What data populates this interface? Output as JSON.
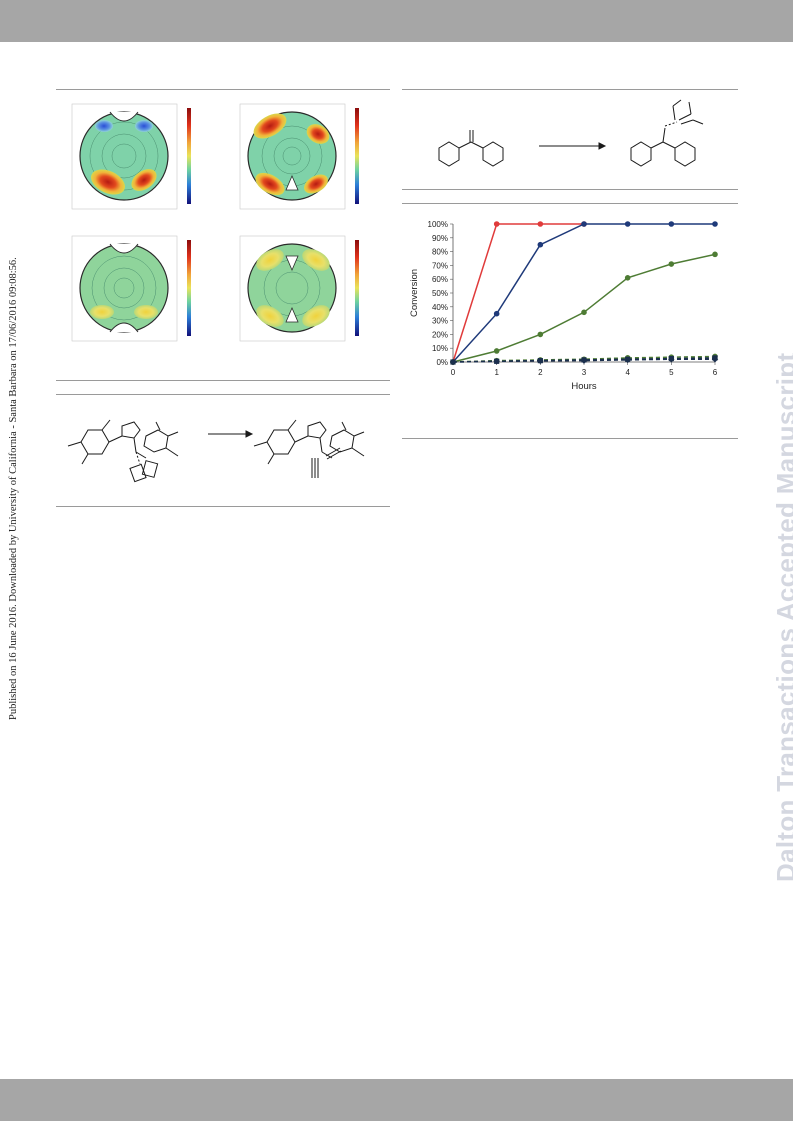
{
  "watermark_left": "Published on 16 June 2016. Downloaded by University of California - Santa Barbara on 17/06/2016 09:08:56.",
  "watermark_right": "Dalton Transactions Accepted Manuscript",
  "colors": {
    "band": "#a6a6a6",
    "red": "#e03b3b",
    "navy": "#1f3a7a",
    "green": "#4e7c34",
    "dark": "#1b2f4d"
  },
  "chart_data": {
    "type": "line",
    "xlabel": "Hours",
    "ylabel": "Conversion",
    "x": [
      0,
      1,
      2,
      3,
      4,
      5,
      6
    ],
    "ylim": [
      0,
      100
    ],
    "y_ticks": [
      "0%",
      "10%",
      "20%",
      "30%",
      "40%",
      "50%",
      "60%",
      "70%",
      "80%",
      "90%",
      "100%"
    ],
    "grid": false,
    "series": [
      {
        "color": "#e03b3b",
        "style": "solid",
        "marker": "circle",
        "values": [
          0,
          100,
          100,
          100,
          null,
          null,
          null
        ]
      },
      {
        "color": "#1f3a7a",
        "style": "solid",
        "marker": "circle",
        "values": [
          0,
          35,
          85,
          100,
          100,
          100,
          100
        ]
      },
      {
        "color": "#4e7c34",
        "style": "solid",
        "marker": "circle",
        "values": [
          0,
          8,
          20,
          36,
          61,
          71,
          78
        ]
      },
      {
        "color": "#4e7c34",
        "style": "dashed",
        "marker": "circle",
        "values": [
          0,
          1,
          1.5,
          2,
          3,
          3.5,
          4
        ]
      },
      {
        "color": "#1b2f4d",
        "style": "dashed",
        "marker": "square",
        "values": [
          0,
          0.5,
          1,
          1.5,
          2,
          2.5,
          3
        ]
      },
      {
        "color": "#1b2f4d",
        "style": "dashed",
        "marker": "diamond",
        "values": [
          0,
          0.5,
          0.8,
          1,
          1.5,
          2,
          2
        ]
      }
    ]
  }
}
